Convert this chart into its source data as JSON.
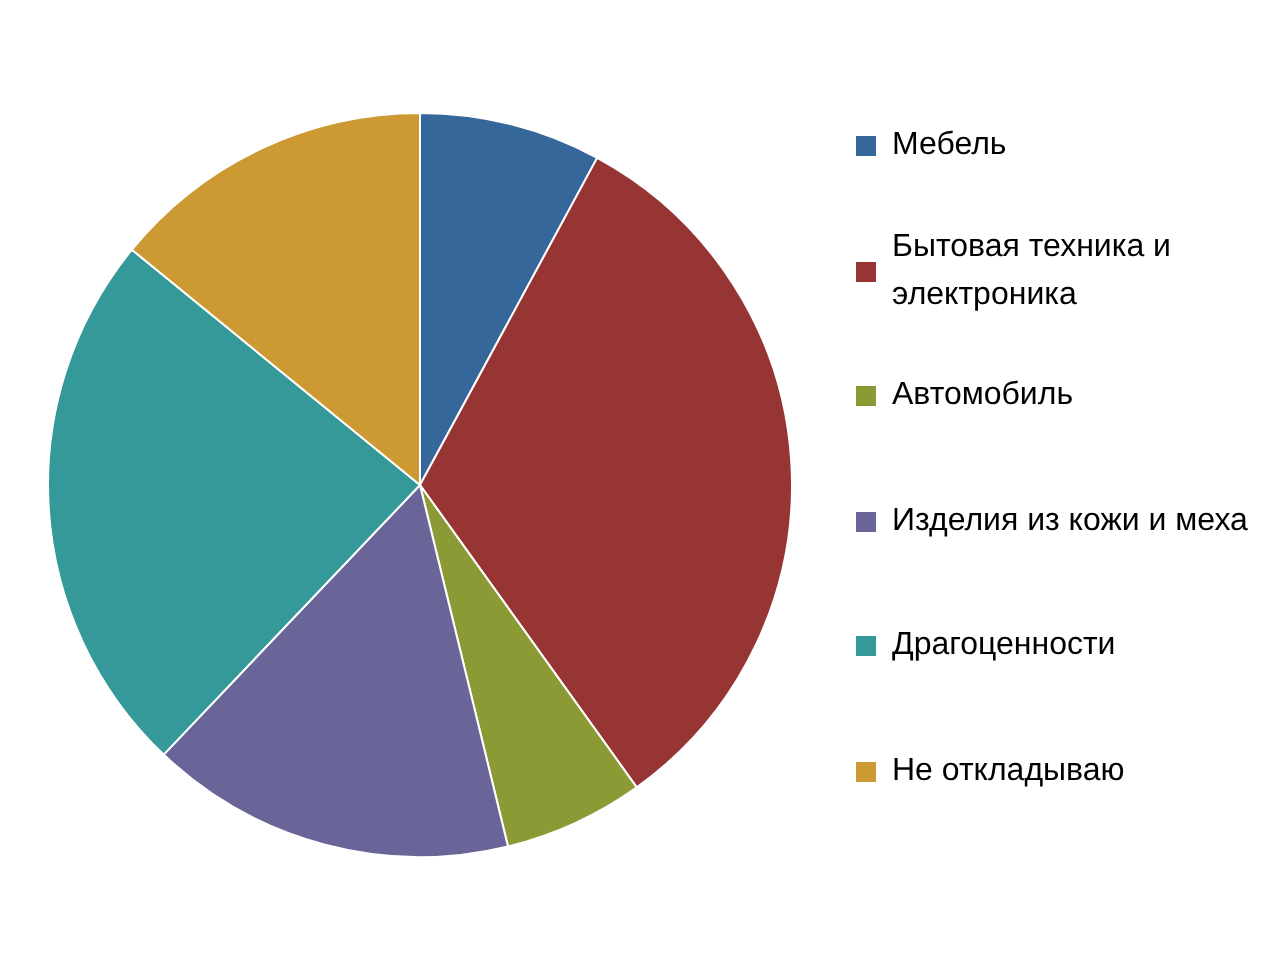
{
  "chart_data": {
    "type": "pie",
    "categories": [
      "Мебель",
      "Бытовая техника и электроника",
      "Автомобиль",
      "Изделия из кожи и меха",
      "Драгоценности",
      "Не откладываю"
    ],
    "values": [
      7.9,
      32.2,
      6.1,
      15.9,
      23.8,
      14.1
    ],
    "colors": [
      "#35679a",
      "#973535",
      "#8c9a35",
      "#6a6598",
      "#35999a",
      "#cc9933"
    ],
    "legend": "right"
  }
}
